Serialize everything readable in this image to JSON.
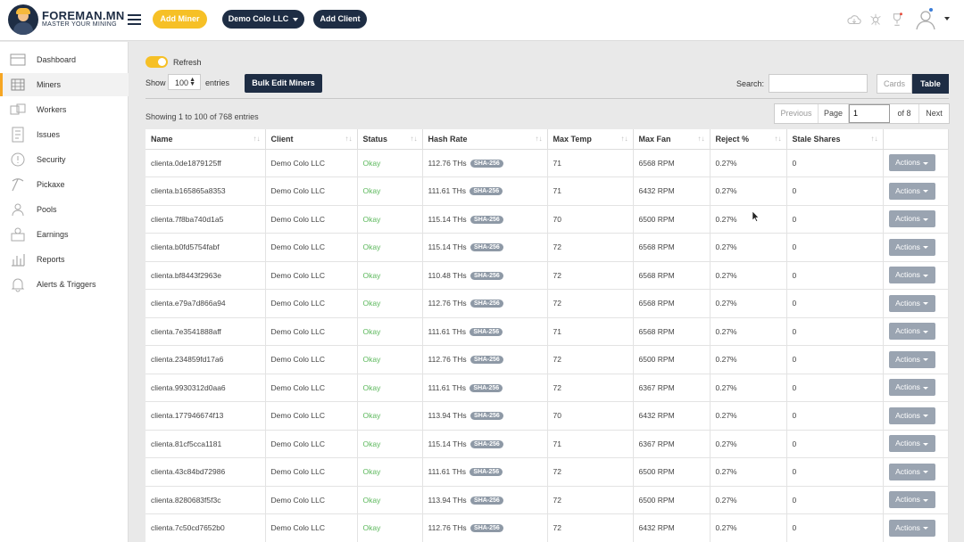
{
  "header": {
    "brand_title": "FOREMAN.MN",
    "brand_sub": "MASTER YOUR MINING",
    "add_miner_label": "Add Miner",
    "client_select_label": "Demo Colo LLC",
    "add_client_label": "Add Client"
  },
  "sidebar": {
    "items": [
      {
        "label": "Dashboard",
        "icon": "dashboard-icon"
      },
      {
        "label": "Miners",
        "icon": "miners-icon"
      },
      {
        "label": "Workers",
        "icon": "workers-icon"
      },
      {
        "label": "Issues",
        "icon": "issues-icon"
      },
      {
        "label": "Security",
        "icon": "security-icon"
      },
      {
        "label": "Pickaxe",
        "icon": "pickaxe-icon"
      },
      {
        "label": "Pools",
        "icon": "pools-icon"
      },
      {
        "label": "Earnings",
        "icon": "earnings-icon"
      },
      {
        "label": "Reports",
        "icon": "reports-icon"
      },
      {
        "label": "Alerts & Triggers",
        "icon": "bell-icon"
      }
    ],
    "active": "Miners"
  },
  "controls": {
    "refresh_label": "Refresh",
    "show_label": "Show",
    "entries_value": "100",
    "entries_label": "entries",
    "bulk_edit_label": "Bulk Edit Miners",
    "search_label": "Search:",
    "search_value": "",
    "cards_label": "Cards",
    "table_label": "Table",
    "showing_text": "Showing 1 to 100 of 768 entries"
  },
  "pager": {
    "previous": "Previous",
    "page_label": "Page",
    "page_value": "1",
    "of_label": "of 8",
    "next": "Next"
  },
  "table": {
    "columns": [
      "Name",
      "Client",
      "Status",
      "Hash Rate",
      "Max Temp",
      "Max Fan",
      "Reject %",
      "Stale Shares",
      ""
    ],
    "algo": "SHA-256",
    "actions_label": "Actions",
    "rows": [
      {
        "name": "clienta.0de1879125ff",
        "client": "Demo Colo LLC",
        "status": "Okay",
        "hash": "112.76 THs",
        "temp": "71",
        "fan": "6568 RPM",
        "reject": "0.27%",
        "stale": "0"
      },
      {
        "name": "clienta.b165865a8353",
        "client": "Demo Colo LLC",
        "status": "Okay",
        "hash": "111.61 THs",
        "temp": "71",
        "fan": "6432 RPM",
        "reject": "0.27%",
        "stale": "0"
      },
      {
        "name": "clienta.7f8ba740d1a5",
        "client": "Demo Colo LLC",
        "status": "Okay",
        "hash": "115.14 THs",
        "temp": "70",
        "fan": "6500 RPM",
        "reject": "0.27%",
        "stale": "0"
      },
      {
        "name": "clienta.b0fd5754fabf",
        "client": "Demo Colo LLC",
        "status": "Okay",
        "hash": "115.14 THs",
        "temp": "72",
        "fan": "6568 RPM",
        "reject": "0.27%",
        "stale": "0"
      },
      {
        "name": "clienta.bf8443f2963e",
        "client": "Demo Colo LLC",
        "status": "Okay",
        "hash": "110.48 THs",
        "temp": "72",
        "fan": "6568 RPM",
        "reject": "0.27%",
        "stale": "0"
      },
      {
        "name": "clienta.e79a7d866a94",
        "client": "Demo Colo LLC",
        "status": "Okay",
        "hash": "112.76 THs",
        "temp": "72",
        "fan": "6568 RPM",
        "reject": "0.27%",
        "stale": "0"
      },
      {
        "name": "clienta.7e3541888aff",
        "client": "Demo Colo LLC",
        "status": "Okay",
        "hash": "111.61 THs",
        "temp": "71",
        "fan": "6568 RPM",
        "reject": "0.27%",
        "stale": "0"
      },
      {
        "name": "clienta.234859fd17a6",
        "client": "Demo Colo LLC",
        "status": "Okay",
        "hash": "112.76 THs",
        "temp": "72",
        "fan": "6500 RPM",
        "reject": "0.27%",
        "stale": "0"
      },
      {
        "name": "clienta.9930312d0aa6",
        "client": "Demo Colo LLC",
        "status": "Okay",
        "hash": "111.61 THs",
        "temp": "72",
        "fan": "6367 RPM",
        "reject": "0.27%",
        "stale": "0"
      },
      {
        "name": "clienta.177946674f13",
        "client": "Demo Colo LLC",
        "status": "Okay",
        "hash": "113.94 THs",
        "temp": "70",
        "fan": "6432 RPM",
        "reject": "0.27%",
        "stale": "0"
      },
      {
        "name": "clienta.81cf5cca1181",
        "client": "Demo Colo LLC",
        "status": "Okay",
        "hash": "115.14 THs",
        "temp": "71",
        "fan": "6367 RPM",
        "reject": "0.27%",
        "stale": "0"
      },
      {
        "name": "clienta.43c84bd72986",
        "client": "Demo Colo LLC",
        "status": "Okay",
        "hash": "111.61 THs",
        "temp": "72",
        "fan": "6500 RPM",
        "reject": "0.27%",
        "stale": "0"
      },
      {
        "name": "clienta.8280683f5f3c",
        "client": "Demo Colo LLC",
        "status": "Okay",
        "hash": "113.94 THs",
        "temp": "72",
        "fan": "6500 RPM",
        "reject": "0.27%",
        "stale": "0"
      },
      {
        "name": "clienta.7c50cd7652b0",
        "client": "Demo Colo LLC",
        "status": "Okay",
        "hash": "112.76 THs",
        "temp": "72",
        "fan": "6432 RPM",
        "reject": "0.27%",
        "stale": "0"
      }
    ]
  },
  "colors": {
    "navy": "#1e2d44",
    "accent_yellow": "#f6c026",
    "okay_green": "#5cb85c"
  }
}
